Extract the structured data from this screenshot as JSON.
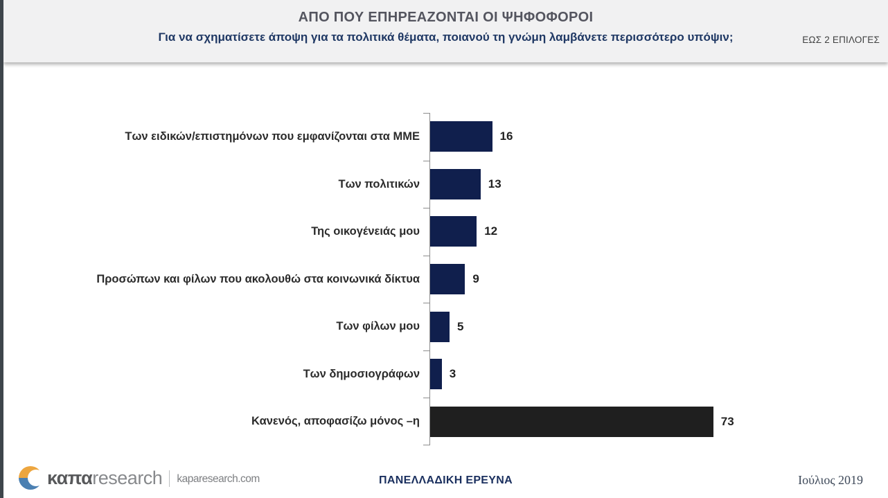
{
  "header": {
    "title": "ΑΠΟ ΠΟΥ ΕΠΗΡΕΑΖΟΝΤΑΙ ΟΙ ΨΗΦΟΦΟΡΟΙ",
    "subtitle": "Για να σχηματίσετε άποψη για τα πολιτικά θέματα, ποιανού τη γνώμη λαμβάνετε περισσότερο υπόψιν;",
    "note": "ΕΩΣ 2 ΕΠΙΛΟΓΕΣ"
  },
  "chart_data": {
    "type": "bar",
    "orientation": "horizontal",
    "title": "ΑΠΟ ΠΟΥ ΕΠΗΡΕΑΖΟΝΤΑΙ ΟΙ ΨΗΦΟΦΟΡΟΙ",
    "categories": [
      "Των ειδικών/επιστημόνων που εμφανίζονται στα ΜΜΕ",
      "Των πολιτικών",
      "Της οικογένειάς μου",
      "Προσώπων και φίλων που ακολουθώ στα κοινωνικά δίκτυα",
      "Των φίλων μου",
      "Των δημοσιογράφων",
      "Κανενός, αποφασίζω μόνος –η"
    ],
    "values": [
      16,
      13,
      12,
      9,
      5,
      3,
      73
    ],
    "bar_colors": [
      "#101f4d",
      "#101f4d",
      "#101f4d",
      "#101f4d",
      "#101f4d",
      "#101f4d",
      "#1f1f1f"
    ],
    "value_labels": true,
    "xlim": [
      0,
      80
    ],
    "grid": false,
    "legend": false
  },
  "footer": {
    "logo": {
      "brand_bold": "καπα",
      "brand_light": "research",
      "domain": "kaparesearch.com"
    },
    "center_text": "ΠΑΝΕΛΛΑΔΙΚΗ ΕΡΕΥΝΑ",
    "date": "Ιούλιος 2019"
  },
  "colors": {
    "bar_navy": "#101f4d",
    "bar_black": "#1f1f1f",
    "subtitle_navy": "#1f3864",
    "title_gray": "#54555f",
    "header_band": "#f1f1f2",
    "edge_strip": "#3e454b",
    "axis_gray": "#8c8c8c",
    "logo_orange": "#eda63f",
    "logo_blue": "#4b80b2"
  }
}
